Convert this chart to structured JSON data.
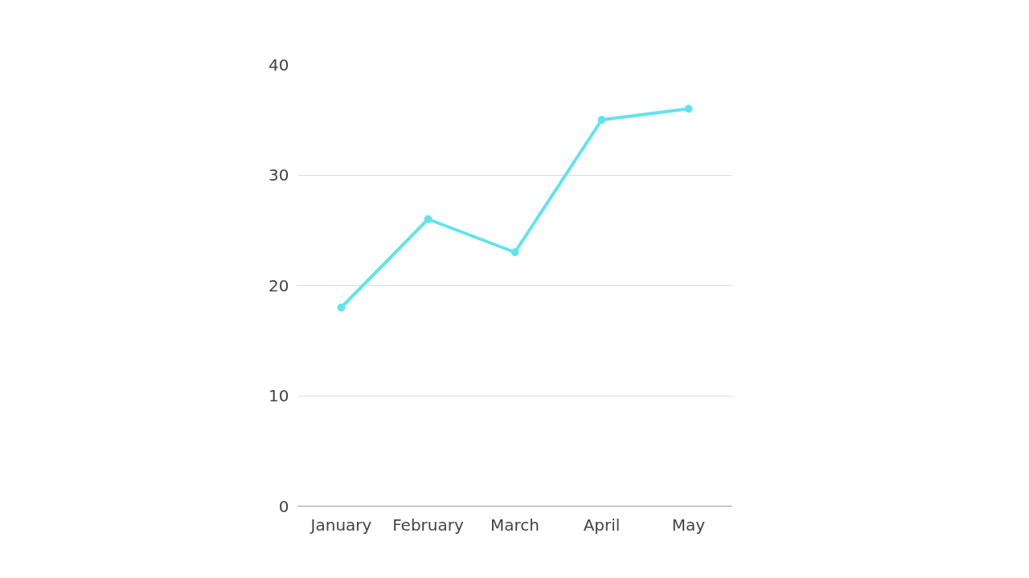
{
  "chart_data": {
    "type": "line",
    "categories": [
      "January",
      "February",
      "March",
      "April",
      "May"
    ],
    "series": [
      {
        "color": "#62e3ea",
        "values": [
          18,
          26,
          23,
          35,
          36
        ]
      }
    ],
    "ylim": [
      0,
      40
    ],
    "yticks": [
      0,
      10,
      20,
      30,
      40
    ],
    "grid": "y",
    "marker": "circle",
    "line_style": "solid"
  }
}
